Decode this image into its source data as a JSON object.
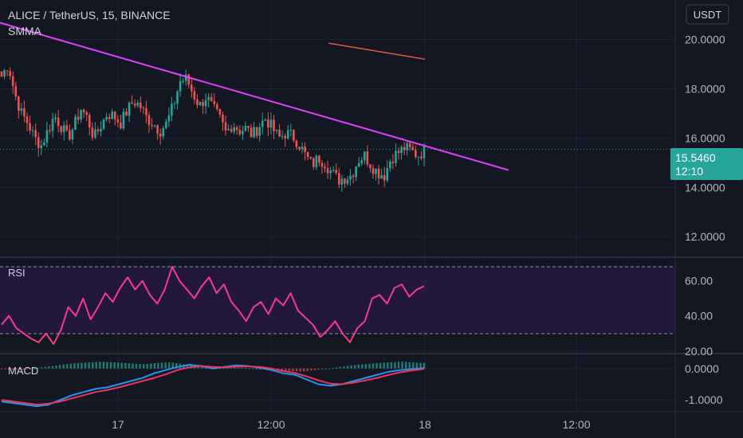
{
  "header": {
    "symbol_line": "ALICE / TetherUS, 15, BINANCE",
    "indicator_label": "SMMA",
    "currency_button": "USDT"
  },
  "colors": {
    "background": "#131722",
    "grid": "#1f2331",
    "candle_up": "#26a69a",
    "candle_down": "#ef5350",
    "trendline": "#e040fb",
    "smma": "#f05a50",
    "rsi_line": "#f23d8a",
    "rsi_band_fill": "#2a1a45",
    "macd_line": "#2196f3",
    "signal_line": "#f0345d",
    "price_badge": "#26a69a",
    "axis_text": "#b2b5be"
  },
  "chart_data": [
    {
      "type": "candlestick",
      "pane": "price",
      "symbol": "ALICE / TetherUS",
      "interval": "15",
      "exchange": "BINANCE",
      "ylim": [
        11.2,
        21.6
      ],
      "y_ticks": [
        "20.0000",
        "18.0000",
        "16.0000",
        "14.0000",
        "12.0000"
      ],
      "x_ticks": [
        "17",
        "12:00",
        "18",
        "12:00"
      ],
      "last_price": "15.5460",
      "countdown": "12:10",
      "close_path": [
        18.5,
        19.0,
        17.8,
        17.0,
        16.6,
        16.0,
        15.7,
        16.3,
        16.9,
        16.5,
        16.0,
        16.5,
        17.2,
        16.8,
        16.0,
        16.5,
        17.0,
        16.9,
        16.6,
        17.1,
        17.5,
        17.3,
        16.8,
        16.6,
        16.3,
        16.6,
        17.3,
        18.3,
        18.4,
        17.8,
        17.3,
        17.7,
        17.2,
        16.8,
        16.2,
        16.6,
        16.3,
        16.4,
        16.1,
        16.5,
        16.8,
        16.4,
        16.0,
        16.2,
        16.1,
        15.8,
        15.3,
        14.9,
        15.2,
        15.0,
        14.6,
        14.3,
        14.4,
        14.5,
        15.1,
        15.3,
        14.9,
        14.6,
        14.5,
        15.2,
        15.4,
        15.6,
        15.5,
        15.3,
        15.5
      ],
      "series": [
        {
          "name": "SMMA",
          "x_fraction": [
            0.0,
            1.0
          ],
          "values": [
            19.85,
            19.2
          ]
        }
      ],
      "trendline": {
        "start": [
          -0.25,
          21.9
        ],
        "end": [
          1.2,
          14.7
        ]
      }
    },
    {
      "type": "line",
      "pane": "indicator",
      "title": "RSI",
      "ylim": [
        19,
        73
      ],
      "y_ticks": [
        "60.00",
        "40.00",
        "20.00"
      ],
      "bands": [
        30,
        70
      ],
      "values": [
        35,
        40,
        33,
        30,
        27,
        25,
        30,
        24,
        32,
        45,
        40,
        50,
        38,
        45,
        53,
        48,
        56,
        62,
        55,
        60,
        52,
        47,
        55,
        68,
        60,
        55,
        50,
        57,
        62,
        53,
        58,
        48,
        43,
        37,
        45,
        48,
        41,
        50,
        46,
        53,
        43,
        39,
        35,
        28,
        32,
        37,
        30,
        25,
        33,
        37,
        50,
        52,
        47,
        56,
        58,
        51,
        55,
        57
      ]
    },
    {
      "type": "line",
      "pane": "indicator",
      "title": "MACD",
      "ylim": [
        -1.35,
        0.45
      ],
      "y_ticks": [
        "0.0000",
        "-1.0000"
      ],
      "series": [
        {
          "values": [
            -1.05,
            -1.1,
            -1.15,
            -1.2,
            -1.15,
            -1.0,
            -0.85,
            -0.75,
            -0.65,
            -0.6,
            -0.5,
            -0.4,
            -0.3,
            -0.15,
            -0.05,
            0.05,
            0.12,
            0.08,
            0.0,
            0.05,
            0.1,
            0.08,
            0.02,
            -0.05,
            -0.15,
            -0.2,
            -0.35,
            -0.5,
            -0.55,
            -0.5,
            -0.4,
            -0.3,
            -0.2,
            -0.1,
            -0.05,
            -0.02,
            0.02
          ]
        },
        {
          "values": [
            -1.0,
            -1.05,
            -1.1,
            -1.15,
            -1.12,
            -1.05,
            -0.95,
            -0.85,
            -0.75,
            -0.68,
            -0.6,
            -0.5,
            -0.4,
            -0.3,
            -0.18,
            -0.05,
            0.04,
            0.08,
            0.05,
            0.04,
            0.06,
            0.07,
            0.05,
            0.0,
            -0.08,
            -0.14,
            -0.25,
            -0.38,
            -0.48,
            -0.5,
            -0.45,
            -0.38,
            -0.3,
            -0.2,
            -0.12,
            -0.06,
            -0.01
          ]
        }
      ],
      "histogram": [
        -0.02,
        -0.04,
        -0.03,
        0.01,
        0.06,
        0.1,
        0.15,
        0.18,
        0.2,
        0.22,
        0.2,
        0.18,
        0.15,
        0.14,
        0.18,
        0.2,
        0.16,
        0.1,
        0.05,
        0.02,
        0.01,
        0.03,
        0.02,
        -0.01,
        -0.03,
        -0.05,
        -0.08,
        -0.1,
        -0.06,
        -0.02,
        0.03,
        0.08,
        0.12,
        0.15,
        0.18,
        0.2,
        0.22,
        0.2,
        0.18
      ]
    }
  ]
}
